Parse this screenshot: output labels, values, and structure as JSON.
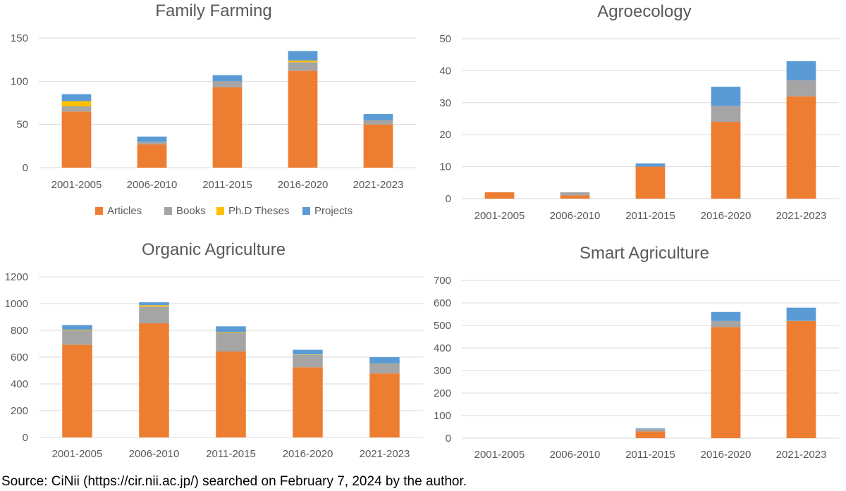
{
  "source_note": "Source: CiNii (https://cir.nii.ac.jp/) searched on February 7, 2024 by the author.",
  "colors": {
    "Articles": "#ED7D31",
    "Books": "#A5A5A5",
    "Ph.D Theses": "#FFC000",
    "Projects": "#5B9BD5",
    "grid": "#D9D9D9",
    "text": "#595959"
  },
  "chart_data": [
    {
      "type": "bar",
      "stacked": true,
      "title": "Family Farming",
      "categories": [
        "2001-2005",
        "2006-2010",
        "2011-2015",
        "2016-2020",
        "2021-2023"
      ],
      "ylim": [
        0,
        150
      ],
      "yticks": [
        0,
        50,
        100,
        150
      ],
      "legend": [
        "Articles",
        "Books",
        "Ph.D Theses",
        "Projects"
      ],
      "series": [
        {
          "name": "Articles",
          "values": [
            65,
            27,
            93,
            112,
            50
          ]
        },
        {
          "name": "Books",
          "values": [
            6,
            3,
            7,
            10,
            5
          ]
        },
        {
          "name": "Ph.D Theses",
          "values": [
            6,
            0,
            0,
            2,
            0
          ]
        },
        {
          "name": "Projects",
          "values": [
            8,
            6,
            7,
            11,
            7
          ]
        }
      ]
    },
    {
      "type": "bar",
      "stacked": true,
      "title": "Agroecology",
      "categories": [
        "2001-2005",
        "2006-2010",
        "2011-2015",
        "2016-2020",
        "2021-2023"
      ],
      "ylim": [
        0,
        50
      ],
      "yticks": [
        0,
        10,
        20,
        30,
        40,
        50
      ],
      "series": [
        {
          "name": "Articles",
          "values": [
            2,
            1,
            10,
            24,
            32
          ]
        },
        {
          "name": "Books",
          "values": [
            0,
            1,
            0,
            5,
            5
          ]
        },
        {
          "name": "Ph.D Theses",
          "values": [
            0,
            0,
            0,
            0,
            0
          ]
        },
        {
          "name": "Projects",
          "values": [
            0,
            0,
            1,
            6,
            6
          ]
        }
      ]
    },
    {
      "type": "bar",
      "stacked": true,
      "title": "Organic Agriculture",
      "categories": [
        "2001-2005",
        "2006-2010",
        "2011-2015",
        "2016-2020",
        "2021-2023"
      ],
      "ylim": [
        0,
        1200
      ],
      "yticks": [
        0,
        200,
        400,
        600,
        800,
        1000,
        1200
      ],
      "series": [
        {
          "name": "Articles",
          "values": [
            693,
            853,
            642,
            525,
            478
          ]
        },
        {
          "name": "Books",
          "values": [
            107,
            125,
            140,
            92,
            70
          ]
        },
        {
          "name": "Ph.D Theses",
          "values": [
            5,
            10,
            5,
            3,
            2
          ]
        },
        {
          "name": "Projects",
          "values": [
            35,
            22,
            43,
            35,
            50
          ]
        }
      ]
    },
    {
      "type": "bar",
      "stacked": true,
      "title": "Smart Agriculture",
      "categories": [
        "2001-2005",
        "2006-2010",
        "2011-2015",
        "2016-2020",
        "2021-2023"
      ],
      "ylim": [
        0,
        700
      ],
      "yticks": [
        0,
        100,
        200,
        300,
        400,
        500,
        600,
        700
      ],
      "series": [
        {
          "name": "Articles",
          "values": [
            0,
            0,
            30,
            493,
            519
          ]
        },
        {
          "name": "Books",
          "values": [
            0,
            0,
            10,
            27,
            2
          ]
        },
        {
          "name": "Ph.D Theses",
          "values": [
            0,
            0,
            0,
            0,
            0
          ]
        },
        {
          "name": "Projects",
          "values": [
            0,
            0,
            3,
            40,
            58
          ]
        }
      ]
    }
  ]
}
